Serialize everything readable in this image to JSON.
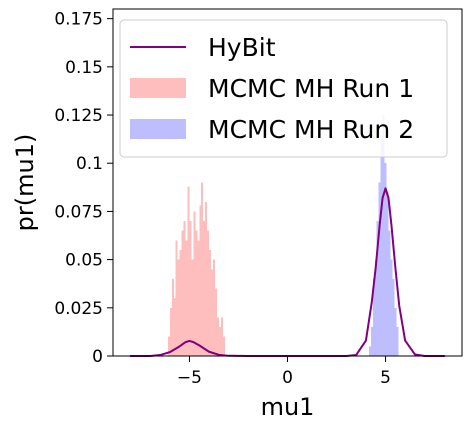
{
  "chart_data": {
    "type": "line+histogram",
    "xlabel": "mu1",
    "ylabel": "pr(mu1)",
    "xlim": [
      -8.9,
      8.9
    ],
    "ylim": [
      0,
      0.18
    ],
    "xticks": [
      -5,
      0,
      5
    ],
    "xtick_labels": [
      "−5",
      "0",
      "5"
    ],
    "yticks": [
      0,
      0.025,
      0.05,
      0.075,
      0.1,
      0.125,
      0.15,
      0.175
    ],
    "ytick_labels": [
      "0",
      "0.025",
      "0.05",
      "0.075",
      "0.1",
      "0.125",
      "0.15",
      "0.175"
    ],
    "grid": false,
    "legend_position": "top-left",
    "legend": [
      {
        "label": "HyBit",
        "kind": "line",
        "color": "#800080"
      },
      {
        "label": "MCMC MH Run 1",
        "kind": "patch",
        "color": "#ffbebe"
      },
      {
        "label": "MCMC MH Run 2",
        "kind": "patch",
        "color": "#bebeff"
      }
    ],
    "series": [
      {
        "name": "HyBit",
        "type": "line",
        "color": "#800080",
        "x": [
          -8.0,
          -7.0,
          -6.5,
          -6.0,
          -5.5,
          -5.2,
          -5.0,
          -4.8,
          -4.5,
          -4.0,
          -3.5,
          -3.0,
          -2.0,
          0.0,
          2.0,
          3.0,
          3.5,
          4.0,
          4.3,
          4.5,
          4.7,
          4.85,
          5.0,
          5.15,
          5.3,
          5.5,
          5.7,
          6.0,
          6.5,
          7.0,
          8.0
        ],
        "y": [
          0.0,
          0.0,
          0.0005,
          0.002,
          0.005,
          0.0072,
          0.0078,
          0.0072,
          0.0055,
          0.0022,
          0.0006,
          0.0001,
          0.0,
          0.0,
          0.0,
          0.0,
          0.0005,
          0.008,
          0.028,
          0.046,
          0.068,
          0.082,
          0.087,
          0.082,
          0.068,
          0.046,
          0.026,
          0.008,
          0.0008,
          0.0,
          0.0
        ]
      },
      {
        "name": "MCMC MH Run 1",
        "type": "histogram",
        "color": "#ffbebe",
        "bin_start": -6.1,
        "bin_width": 0.1,
        "values": [
          0.01,
          0.025,
          0.04,
          0.03,
          0.06,
          0.05,
          0.055,
          0.065,
          0.07,
          0.06,
          0.088,
          0.07,
          0.05,
          0.075,
          0.065,
          0.06,
          0.078,
          0.09,
          0.07,
          0.08,
          0.065,
          0.055,
          0.045,
          0.05,
          0.035,
          0.02,
          0.015,
          0.02,
          0.01
        ]
      },
      {
        "name": "MCMC MH Run 2",
        "type": "histogram",
        "color": "#bebeff",
        "bin_start": 4.15,
        "bin_width": 0.1,
        "values": [
          0.005,
          0.015,
          0.04,
          0.05,
          0.07,
          0.09,
          0.115,
          0.125,
          0.1,
          0.085,
          0.065,
          0.05,
          0.04,
          0.025,
          0.015
        ]
      }
    ]
  }
}
